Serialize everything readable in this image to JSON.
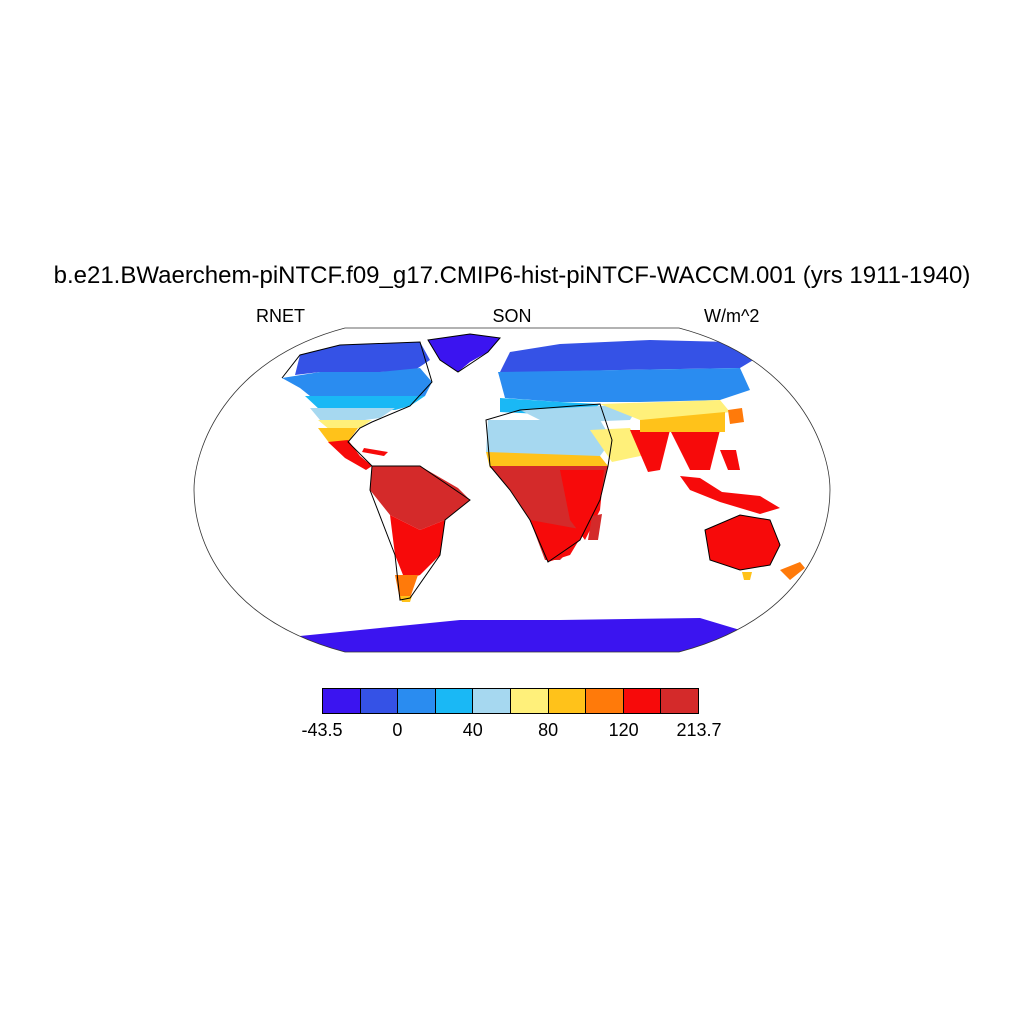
{
  "title": "b.e21.BWaerchem-piNTCF.f09_g17.CMIP6-hist-piNTCF-WACCM.001 (yrs 1911-1940)",
  "left_label": "RNET",
  "center_label": "SON",
  "right_label": "W/m^2",
  "colorbar": {
    "colors": [
      "#3b14f0",
      "#3552e6",
      "#2a8cf0",
      "#1ab8f5",
      "#a6d8f0",
      "#fff07a",
      "#ffc21a",
      "#ff7a0a",
      "#f70a0a",
      "#d42a2a"
    ],
    "tick_labels": [
      "-43.5",
      "0",
      "40",
      "80",
      "120",
      "213.7"
    ]
  },
  "chart_data": {
    "type": "heatmap",
    "projection": "Robinson",
    "variable": "RNET",
    "season": "SON",
    "units": "W/m^2",
    "color_levels": [
      -43.5,
      0,
      40,
      80,
      120,
      213.7
    ]
  }
}
